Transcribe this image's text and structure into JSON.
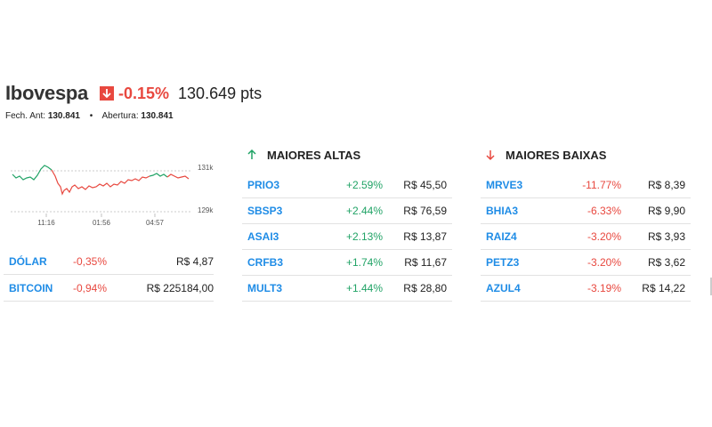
{
  "index": {
    "name": "Ibovespa",
    "change": "-0.15%",
    "points": "130.649 pts",
    "prev_close_label": "Fech. Ant:",
    "prev_close_value": "130.841",
    "open_label": "Abertura:",
    "open_value": "130.841"
  },
  "chart": {
    "y_ticks": [
      "131k",
      "129k"
    ],
    "x_ticks": [
      "11:16",
      "01:56",
      "04:57"
    ]
  },
  "mini": [
    {
      "symbol": "DÓLAR",
      "change": "-0,35%",
      "price": "R$ 4,87"
    },
    {
      "symbol": "BITCOIN",
      "change": "-0,94%",
      "price": "R$ 225184,00"
    }
  ],
  "gainers": {
    "title": "MAIORES ALTAS",
    "rows": [
      {
        "symbol": "PRIO3",
        "change": "+2.59%",
        "price": "R$ 45,50"
      },
      {
        "symbol": "SBSP3",
        "change": "+2.44%",
        "price": "R$ 76,59"
      },
      {
        "symbol": "ASAI3",
        "change": "+2.13%",
        "price": "R$ 13,87"
      },
      {
        "symbol": "CRFB3",
        "change": "+1.74%",
        "price": "R$ 11,67"
      },
      {
        "symbol": "MULT3",
        "change": "+1.44%",
        "price": "R$ 28,80"
      }
    ]
  },
  "losers": {
    "title": "MAIORES BAIXAS",
    "rows": [
      {
        "symbol": "MRVE3",
        "change": "-11.77%",
        "price": "R$ 8,39"
      },
      {
        "symbol": "BHIA3",
        "change": "-6.33%",
        "price": "R$ 9,90"
      },
      {
        "symbol": "RAIZ4",
        "change": "-3.20%",
        "price": "R$ 3,93"
      },
      {
        "symbol": "PETZ3",
        "change": "-3.20%",
        "price": "R$ 3,62"
      },
      {
        "symbol": "AZUL4",
        "change": "-3.19%",
        "price": "R$ 14,22"
      }
    ]
  },
  "colors": {
    "up": "#21a366",
    "down": "#e8483f",
    "link": "#1f8ce6"
  }
}
